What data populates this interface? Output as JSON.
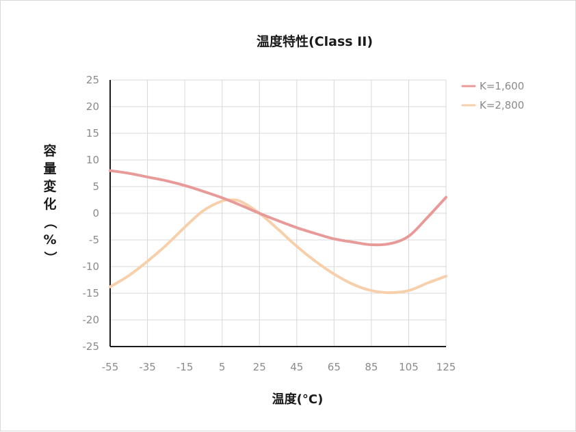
{
  "chart_data": {
    "type": "line",
    "title": "温度特性(Class II)",
    "xlabel": "温度(°C)",
    "ylabel": "容量変化（%）",
    "x_ticks": [
      -55,
      -35,
      -15,
      5,
      25,
      45,
      65,
      85,
      105,
      125
    ],
    "y_ticks": [
      25,
      20,
      15,
      10,
      5,
      0,
      -5,
      -10,
      -15,
      -20,
      -25
    ],
    "xlim": [
      -55,
      125
    ],
    "ylim": [
      -25,
      25
    ],
    "grid": true,
    "legend_position": "top-right",
    "series": [
      {
        "name": "K=1,600",
        "color": "#e89a98",
        "x": [
          -55,
          -45,
          -35,
          -25,
          -15,
          -5,
          5,
          15,
          25,
          35,
          45,
          55,
          65,
          75,
          85,
          95,
          105,
          115,
          125
        ],
        "y": [
          8,
          7.5,
          6.8,
          6.1,
          5.2,
          4.1,
          2.9,
          1.5,
          0,
          -1.4,
          -2.7,
          -3.8,
          -4.8,
          -5.4,
          -5.9,
          -5.7,
          -4.3,
          -0.8,
          3
        ]
      },
      {
        "name": "K=2,800",
        "color": "#f7cfaa",
        "x": [
          -55,
          -45,
          -35,
          -25,
          -15,
          -5,
          5,
          10,
          15,
          25,
          35,
          45,
          55,
          65,
          75,
          85,
          95,
          105,
          115,
          125
        ],
        "y": [
          -13.8,
          -11.7,
          -9,
          -6,
          -2.6,
          0.5,
          2.3,
          2.5,
          2.2,
          0,
          -3,
          -6.2,
          -9,
          -11.4,
          -13.3,
          -14.5,
          -14.9,
          -14.5,
          -13.1,
          -11.8
        ]
      }
    ]
  }
}
